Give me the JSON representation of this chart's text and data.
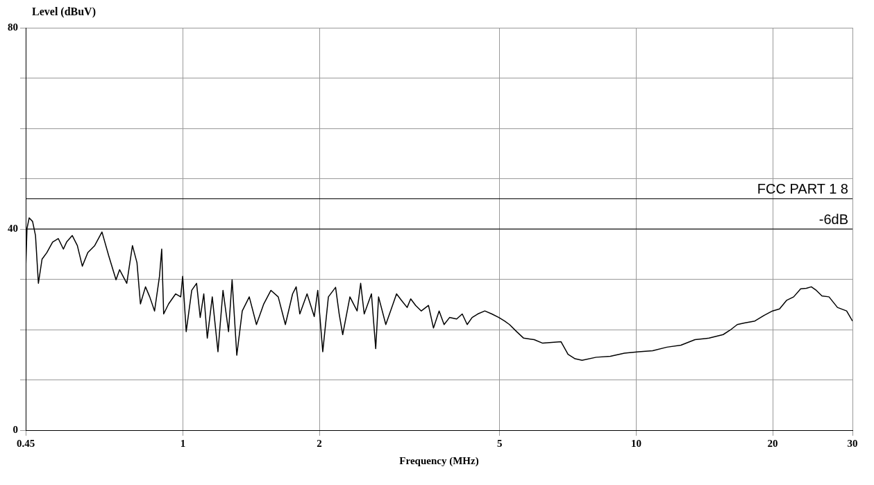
{
  "chart_data": {
    "type": "line",
    "xlabel": "Frequency (MHz)",
    "ylabel": "Level (dBuV)",
    "log": "x",
    "xlim": [
      0.45,
      30
    ],
    "xticks": [
      0.45,
      1,
      2,
      5,
      10,
      20,
      30
    ],
    "ylim": [
      0,
      80
    ],
    "yticks": [
      0,
      {
        "value": 10,
        "label": null
      },
      {
        "value": 20,
        "label": null
      },
      {
        "value": 30,
        "label": null
      },
      40,
      {
        "value": 50,
        "label": null
      },
      {
        "value": 60,
        "label": null
      },
      {
        "value": 70,
        "label": null
      },
      80
    ],
    "grid": true,
    "legend": false,
    "marker": "none",
    "line_style": "solid",
    "ref_lines": [
      {
        "axis": "y",
        "value": 46,
        "label": "FCC PART 1 8"
      },
      {
        "axis": "y",
        "value": 40,
        "label": "-6dB"
      }
    ],
    "series": [
      {
        "color": "#000000",
        "x": [
          0.45,
          0.453,
          0.458,
          0.466,
          0.473,
          0.48,
          0.489,
          0.501,
          0.516,
          0.531,
          0.545,
          0.554,
          0.57,
          0.585,
          0.6,
          0.617,
          0.639,
          0.663,
          0.686,
          0.712,
          0.725,
          0.752,
          0.774,
          0.792,
          0.806,
          0.827,
          0.845,
          0.866,
          0.888,
          0.898,
          0.907,
          0.93,
          0.964,
          0.989,
          0.999,
          1.017,
          1.046,
          1.072,
          1.092,
          1.112,
          1.132,
          1.161,
          1.195,
          1.226,
          1.261,
          1.284,
          1.315,
          1.352,
          1.401,
          1.453,
          1.508,
          1.564,
          1.623,
          1.683,
          1.746,
          1.778,
          1.811,
          1.879,
          1.949,
          1.984,
          2.035,
          2.094,
          2.172,
          2.212,
          2.252,
          2.336,
          2.423,
          2.467,
          2.512,
          2.606,
          2.663,
          2.702,
          2.803,
          2.908,
          2.96,
          3.036,
          3.124,
          3.181,
          3.262,
          3.357,
          3.482,
          3.571,
          3.675,
          3.769,
          3.875,
          4.017,
          4.133,
          4.238,
          4.345,
          4.471,
          4.635,
          4.804,
          4.979,
          5.124,
          5.254,
          5.446,
          5.645,
          5.956,
          6.218,
          6.824,
          7.072,
          7.331,
          7.597,
          8.163,
          8.769,
          9.42,
          10.12,
          10.87,
          11.68,
          12.55,
          13.48,
          14.48,
          15.55,
          16.12,
          16.71,
          17.32,
          18.27,
          19.14,
          19.98,
          20.71,
          21.46,
          22.25,
          23.06,
          23.73,
          24.34,
          24.96,
          25.69,
          26.63,
          27.8,
          29.12,
          30
        ],
        "values": [
          31.9,
          40.1,
          42.2,
          41.5,
          38.7,
          29.2,
          34.0,
          35.3,
          37.4,
          38.1,
          36.0,
          37.4,
          38.7,
          36.7,
          32.6,
          35.3,
          36.7,
          39.4,
          34.7,
          29.9,
          31.9,
          29.2,
          36.7,
          33.3,
          25.1,
          28.5,
          26.5,
          23.7,
          30.6,
          36.0,
          23.1,
          25.1,
          27.1,
          26.5,
          30.6,
          19.6,
          27.8,
          29.2,
          22.4,
          27.1,
          18.3,
          26.5,
          15.6,
          27.8,
          19.6,
          29.9,
          14.9,
          23.7,
          26.5,
          21.0,
          25.1,
          27.8,
          26.5,
          21.0,
          27.1,
          28.5,
          23.1,
          27.1,
          22.6,
          27.8,
          15.6,
          26.5,
          28.4,
          23.1,
          19.0,
          26.5,
          23.7,
          29.2,
          23.1,
          27.1,
          16.2,
          26.5,
          21.0,
          25.1,
          27.1,
          25.8,
          24.4,
          26.1,
          24.8,
          23.7,
          24.8,
          20.3,
          23.7,
          21.0,
          22.4,
          22.1,
          23.1,
          21.0,
          22.4,
          23.1,
          23.7,
          23.1,
          22.4,
          21.7,
          21.0,
          19.6,
          18.3,
          18.0,
          17.3,
          17.6,
          15.1,
          14.2,
          13.9,
          14.5,
          14.7,
          15.3,
          15.6,
          15.8,
          16.5,
          16.9,
          18.0,
          18.3,
          19.0,
          19.9,
          21.0,
          21.3,
          21.7,
          22.8,
          23.7,
          24.1,
          25.8,
          26.5,
          28.1,
          28.2,
          28.5,
          27.8,
          26.7,
          26.5,
          24.4,
          23.7,
          21.7
        ]
      }
    ]
  }
}
